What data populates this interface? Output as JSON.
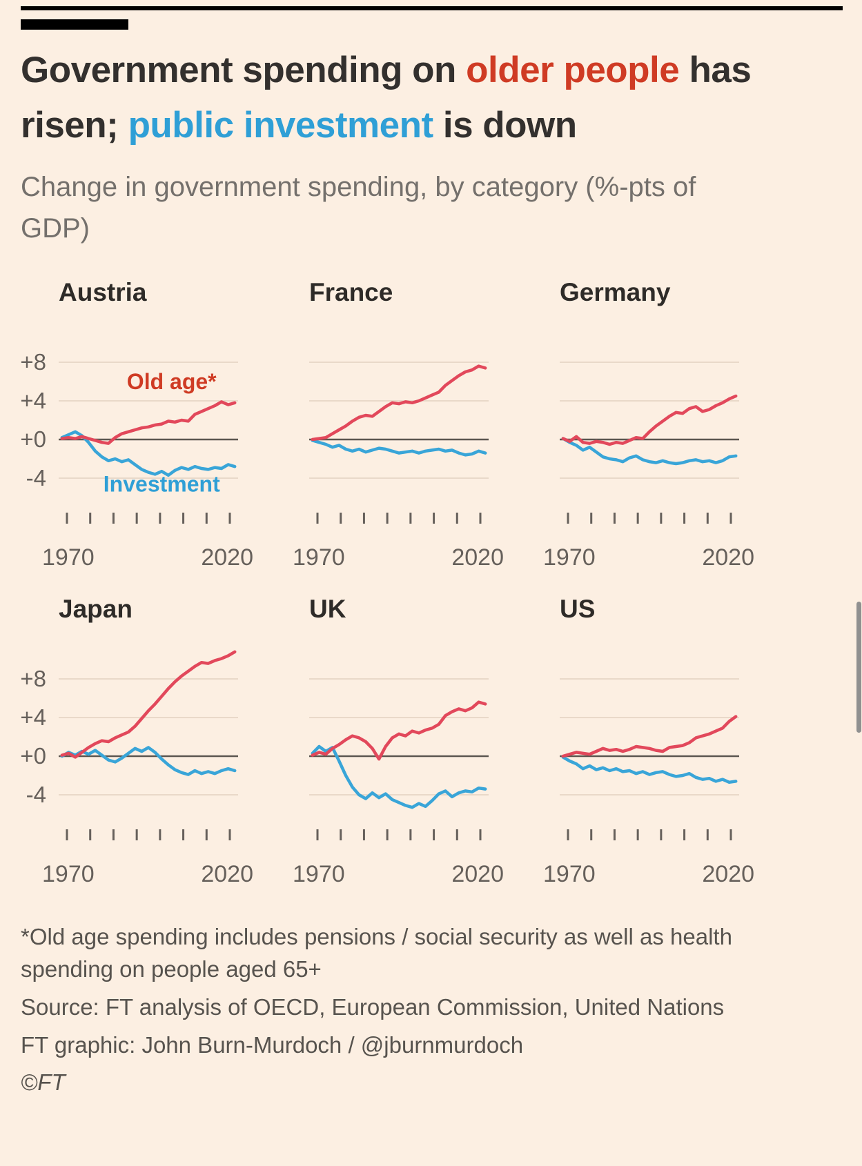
{
  "colors": {
    "background": "#fcefe2",
    "title_red": "#cf3b24",
    "title_blue": "#2f9fd6",
    "line_red": "#e2485b",
    "line_blue": "#39a5d8",
    "text_dark": "#33302e",
    "text_gray": "#74706c",
    "axis_gray": "#66605b",
    "gridline": "#e9d9c9",
    "zero_line": "#5b5650",
    "footer_gray": "#57534e",
    "scrollbar": "#909090"
  },
  "header": {
    "title_segments": [
      {
        "text": "Government spending on ",
        "role": "dark"
      },
      {
        "text": "older people",
        "role": "red"
      },
      {
        "text": " has risen; ",
        "role": "dark"
      },
      {
        "text": "public investment",
        "role": "blue"
      },
      {
        "text": " is down",
        "role": "dark"
      }
    ],
    "subtitle": "Change in government spending, by category (%-pts of GDP)"
  },
  "chart_data": {
    "type": "line",
    "small_multiples": true,
    "ylim": [
      -6.5,
      11
    ],
    "x_range": [
      1969,
      2023
    ],
    "xtick_labels": [
      "1970",
      "2020"
    ],
    "gridlines": [
      {
        "value": 8,
        "label": "+8"
      },
      {
        "value": 4,
        "label": "+4"
      },
      {
        "value": 0,
        "label": "+0"
      },
      {
        "value": -4,
        "label": "-4"
      }
    ],
    "x_tick_count": 8,
    "series_meta": [
      {
        "id": "old_age",
        "label": "Old age*",
        "color": "#e2485b"
      },
      {
        "id": "investment",
        "label": "Investment",
        "color": "#39a5d8"
      }
    ],
    "annotations": [
      {
        "panel_index": 0,
        "series": "old_age",
        "text": "Old age*",
        "x": 2003,
        "y": 5.2
      },
      {
        "panel_index": 0,
        "series": "investment",
        "text": "Investment",
        "x": 2000,
        "y": -5.4
      }
    ],
    "years": [
      1970,
      1972,
      1974,
      1976,
      1978,
      1980,
      1982,
      1984,
      1986,
      1988,
      1990,
      1992,
      1994,
      1996,
      1998,
      2000,
      2002,
      2004,
      2006,
      2008,
      2010,
      2012,
      2014,
      2016,
      2018,
      2020,
      2022
    ],
    "panels": [
      {
        "title": "Austria",
        "show_y_labels": true,
        "series": {
          "old_age": [
            0.1,
            0.2,
            0.1,
            0.3,
            0.1,
            -0.1,
            -0.3,
            -0.4,
            0.2,
            0.6,
            0.8,
            1.0,
            1.2,
            1.3,
            1.5,
            1.6,
            1.9,
            1.8,
            2.0,
            1.9,
            2.6,
            2.9,
            3.2,
            3.5,
            3.9,
            3.6,
            3.8
          ],
          "investment": [
            0.2,
            0.5,
            0.8,
            0.4,
            -0.3,
            -1.2,
            -1.8,
            -2.2,
            -2.0,
            -2.3,
            -2.1,
            -2.6,
            -3.1,
            -3.4,
            -3.6,
            -3.3,
            -3.7,
            -3.2,
            -2.9,
            -3.1,
            -2.8,
            -3.0,
            -3.1,
            -2.9,
            -3.0,
            -2.6,
            -2.8
          ]
        }
      },
      {
        "title": "France",
        "show_y_labels": false,
        "series": {
          "old_age": [
            0.0,
            0.1,
            0.2,
            0.6,
            1.0,
            1.4,
            1.9,
            2.3,
            2.5,
            2.4,
            2.9,
            3.4,
            3.8,
            3.7,
            3.9,
            3.8,
            4.0,
            4.3,
            4.6,
            4.9,
            5.6,
            6.1,
            6.6,
            7.0,
            7.2,
            7.6,
            7.4
          ],
          "investment": [
            -0.1,
            -0.3,
            -0.5,
            -0.8,
            -0.6,
            -1.0,
            -1.2,
            -1.0,
            -1.3,
            -1.1,
            -0.9,
            -1.0,
            -1.2,
            -1.4,
            -1.3,
            -1.2,
            -1.4,
            -1.2,
            -1.1,
            -1.0,
            -1.2,
            -1.1,
            -1.4,
            -1.6,
            -1.5,
            -1.2,
            -1.4
          ]
        }
      },
      {
        "title": "Germany",
        "show_y_labels": false,
        "series": {
          "old_age": [
            0.1,
            -0.2,
            0.3,
            -0.3,
            -0.4,
            -0.2,
            -0.3,
            -0.5,
            -0.3,
            -0.4,
            -0.1,
            0.2,
            0.1,
            0.8,
            1.4,
            1.9,
            2.4,
            2.8,
            2.7,
            3.2,
            3.4,
            2.9,
            3.1,
            3.5,
            3.8,
            4.2,
            4.5
          ],
          "investment": [
            0.1,
            -0.3,
            -0.6,
            -1.1,
            -0.8,
            -1.3,
            -1.8,
            -2.0,
            -2.1,
            -2.3,
            -1.9,
            -1.7,
            -2.1,
            -2.3,
            -2.4,
            -2.2,
            -2.4,
            -2.5,
            -2.4,
            -2.2,
            -2.1,
            -2.3,
            -2.2,
            -2.4,
            -2.2,
            -1.8,
            -1.7
          ]
        }
      },
      {
        "title": "Japan",
        "show_y_labels": true,
        "series": {
          "old_age": [
            0.1,
            0.3,
            -0.1,
            0.4,
            0.9,
            1.3,
            1.6,
            1.5,
            1.9,
            2.2,
            2.5,
            3.1,
            3.9,
            4.7,
            5.4,
            6.2,
            7.0,
            7.7,
            8.3,
            8.8,
            9.3,
            9.7,
            9.6,
            9.9,
            10.1,
            10.4,
            10.8
          ],
          "investment": [
            0.0,
            0.4,
            0.1,
            0.5,
            0.2,
            0.6,
            0.1,
            -0.4,
            -0.6,
            -0.2,
            0.3,
            0.8,
            0.5,
            0.9,
            0.4,
            -0.3,
            -0.9,
            -1.4,
            -1.7,
            -1.9,
            -1.5,
            -1.8,
            -1.6,
            -1.8,
            -1.5,
            -1.3,
            -1.5
          ]
        }
      },
      {
        "title": "UK",
        "show_y_labels": false,
        "series": {
          "old_age": [
            0.1,
            0.4,
            0.2,
            0.8,
            1.2,
            1.7,
            2.1,
            1.9,
            1.5,
            0.8,
            -0.3,
            1.0,
            1.9,
            2.3,
            2.1,
            2.6,
            2.4,
            2.7,
            2.9,
            3.3,
            4.2,
            4.6,
            4.9,
            4.7,
            5.0,
            5.6,
            5.4
          ],
          "investment": [
            0.3,
            1.0,
            0.5,
            0.9,
            -0.5,
            -2.0,
            -3.2,
            -4.0,
            -4.4,
            -3.8,
            -4.3,
            -3.9,
            -4.5,
            -4.8,
            -5.1,
            -5.3,
            -4.9,
            -5.2,
            -4.6,
            -3.9,
            -3.6,
            -4.2,
            -3.8,
            -3.6,
            -3.7,
            -3.3,
            -3.4
          ]
        }
      },
      {
        "title": "US",
        "show_y_labels": false,
        "series": {
          "old_age": [
            0.0,
            0.2,
            0.4,
            0.3,
            0.2,
            0.5,
            0.8,
            0.6,
            0.7,
            0.5,
            0.7,
            1.0,
            0.9,
            0.8,
            0.6,
            0.5,
            0.9,
            1.0,
            1.1,
            1.4,
            1.9,
            2.1,
            2.3,
            2.6,
            2.9,
            3.6,
            4.1
          ],
          "investment": [
            -0.1,
            -0.5,
            -0.8,
            -1.3,
            -1.0,
            -1.4,
            -1.2,
            -1.5,
            -1.3,
            -1.6,
            -1.5,
            -1.8,
            -1.6,
            -1.9,
            -1.7,
            -1.6,
            -1.9,
            -2.1,
            -2.0,
            -1.8,
            -2.2,
            -2.4,
            -2.3,
            -2.6,
            -2.4,
            -2.7,
            -2.6
          ]
        }
      }
    ]
  },
  "footer": {
    "footnote": "*Old age spending includes pensions / social security as well as health spending on people aged 65+",
    "source": "Source: FT analysis of OECD, European Commission, United Nations",
    "credit": "FT graphic: John Burn-Murdoch / @jburnmurdoch",
    "copyright": "©FT"
  }
}
